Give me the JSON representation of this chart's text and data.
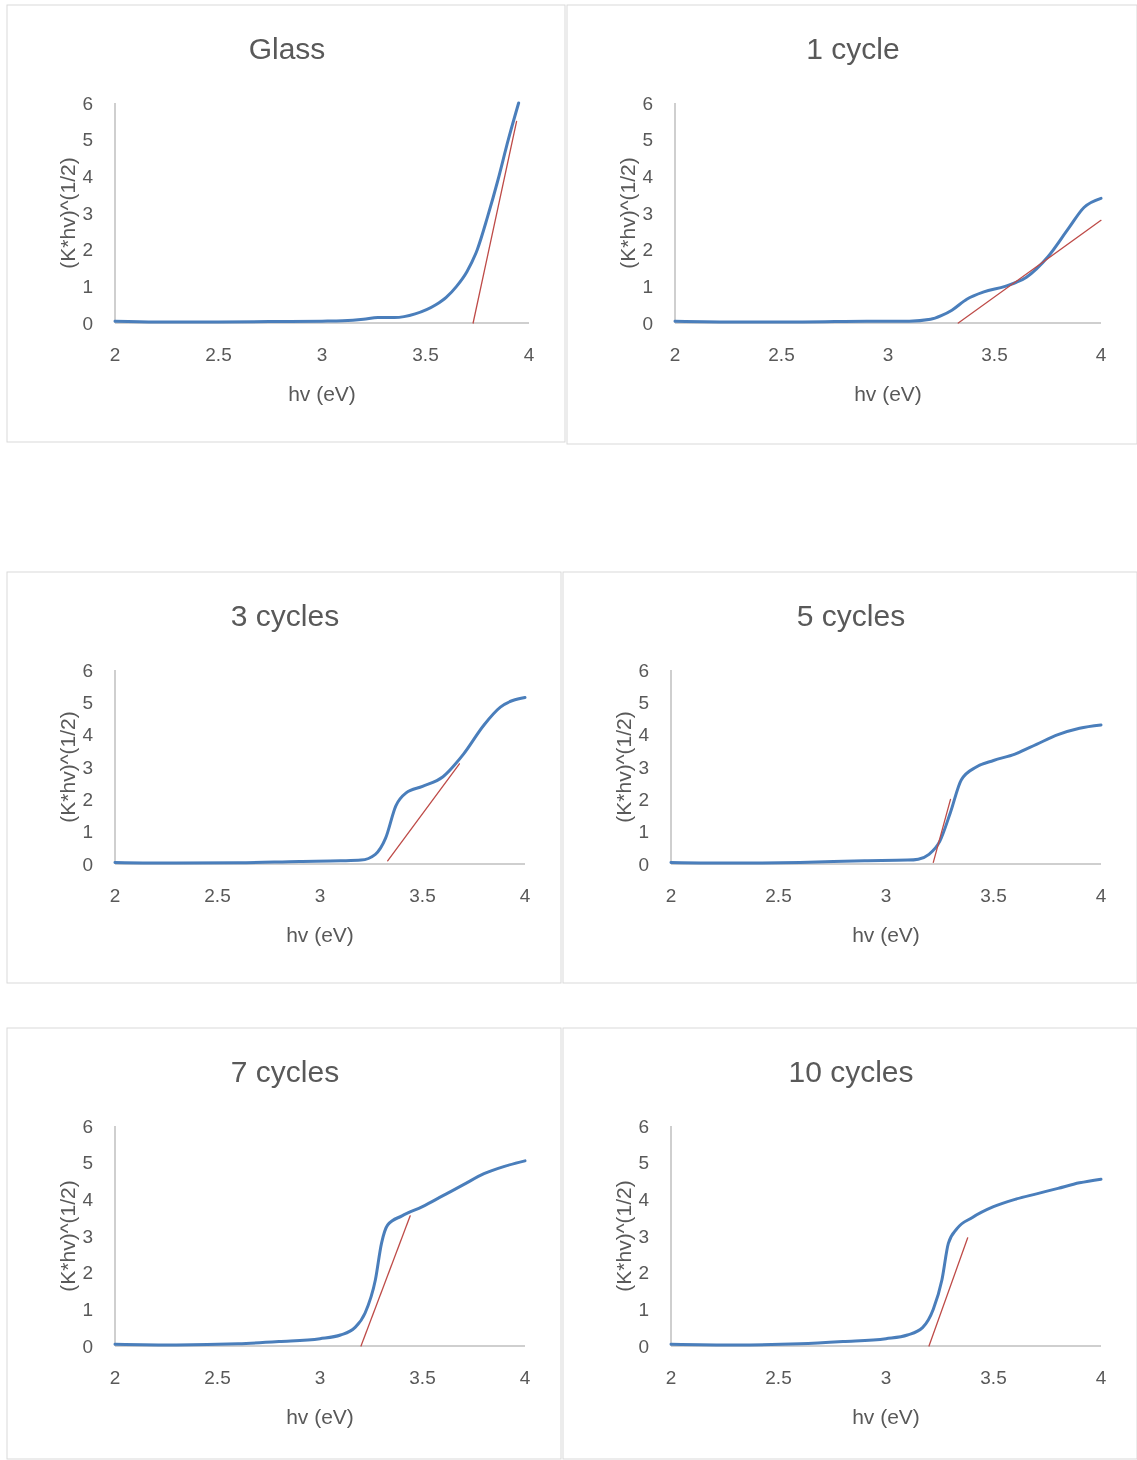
{
  "chart_data": [
    {
      "type": "line",
      "title": "Glass",
      "xlabel": "hv (eV)",
      "ylabel": "(K*hv)^(1/2)",
      "xlim": [
        2,
        4
      ],
      "xticks": [
        2,
        2.5,
        3,
        3.5,
        4
      ],
      "ylim": [
        0,
        6
      ],
      "yticks": [
        0,
        1,
        2,
        3,
        4,
        5,
        6
      ],
      "series": [
        {
          "color": "#4a7ebb",
          "x": [
            2,
            2.2,
            2.5,
            2.8,
            3,
            3.1,
            3.2,
            3.27,
            3.35,
            3.45,
            3.55,
            3.6,
            3.65,
            3.7,
            3.75,
            3.8,
            3.85,
            3.9,
            3.95
          ],
          "values": [
            0.05,
            0.03,
            0.03,
            0.04,
            0.05,
            0.06,
            0.1,
            0.15,
            0.15,
            0.25,
            0.5,
            0.7,
            1.0,
            1.4,
            2.0,
            2.9,
            3.9,
            5.0,
            6.0
          ]
        },
        {
          "color": "#be4b48",
          "x": [
            3.73,
            3.94
          ],
          "values": [
            0,
            5.5
          ]
        }
      ]
    },
    {
      "type": "line",
      "title": "1 cycle",
      "xlabel": "hv (eV)",
      "ylabel": "(K*hv)^(1/2)",
      "xlim": [
        2,
        4
      ],
      "xticks": [
        2,
        2.5,
        3,
        3.5,
        4
      ],
      "ylim": [
        0,
        6
      ],
      "yticks": [
        0,
        1,
        2,
        3,
        4,
        5,
        6
      ],
      "series": [
        {
          "color": "#4a7ebb",
          "x": [
            2,
            2.3,
            2.6,
            2.9,
            3.1,
            3.2,
            3.25,
            3.3,
            3.37,
            3.45,
            3.55,
            3.65,
            3.75,
            3.85,
            3.92,
            4.0
          ],
          "values": [
            0.05,
            0.03,
            0.03,
            0.05,
            0.05,
            0.1,
            0.2,
            0.35,
            0.65,
            0.85,
            1.0,
            1.25,
            1.8,
            2.6,
            3.15,
            3.4
          ]
        },
        {
          "color": "#be4b48",
          "x": [
            3.33,
            4.0
          ],
          "values": [
            0,
            2.8
          ]
        }
      ]
    },
    {
      "type": "line",
      "title": "3 cycles",
      "xlabel": "hv (eV)",
      "ylabel": "(K*hv)^(1/2)",
      "xlim": [
        2,
        4
      ],
      "xticks": [
        2,
        2.5,
        3,
        3.5,
        4
      ],
      "ylim": [
        0,
        6
      ],
      "yticks": [
        0,
        1,
        2,
        3,
        4,
        5,
        6
      ],
      "series": [
        {
          "color": "#4a7ebb",
          "x": [
            2,
            2.3,
            2.6,
            2.9,
            3.1,
            3.2,
            3.27,
            3.32,
            3.37,
            3.42,
            3.5,
            3.6,
            3.7,
            3.8,
            3.88,
            4.0
          ],
          "values": [
            0.05,
            0.03,
            0.04,
            0.08,
            0.1,
            0.12,
            0.3,
            0.8,
            1.8,
            2.2,
            2.4,
            2.7,
            3.4,
            4.3,
            4.85,
            5.15
          ]
        },
        {
          "color": "#be4b48",
          "x": [
            3.33,
            3.68
          ],
          "values": [
            0.1,
            3.1
          ]
        }
      ]
    },
    {
      "type": "line",
      "title": "5 cycles",
      "xlabel": "hv (eV)",
      "ylabel": "(K*hv)^(1/2)",
      "xlim": [
        2,
        4
      ],
      "xticks": [
        2,
        2.5,
        3,
        3.5,
        4
      ],
      "ylim": [
        0,
        6
      ],
      "yticks": [
        0,
        1,
        2,
        3,
        4,
        5,
        6
      ],
      "series": [
        {
          "color": "#4a7ebb",
          "x": [
            2,
            2.3,
            2.6,
            2.9,
            3.1,
            3.15,
            3.2,
            3.25,
            3.3,
            3.35,
            3.42,
            3.5,
            3.6,
            3.7,
            3.8,
            3.9,
            4.0
          ],
          "values": [
            0.05,
            0.03,
            0.05,
            0.1,
            0.12,
            0.15,
            0.3,
            0.7,
            1.6,
            2.6,
            3.0,
            3.2,
            3.4,
            3.7,
            4.0,
            4.2,
            4.3
          ]
        },
        {
          "color": "#be4b48",
          "x": [
            3.22,
            3.3
          ],
          "values": [
            0.05,
            2.0
          ]
        }
      ]
    },
    {
      "type": "line",
      "title": "7 cycles",
      "xlabel": "hv (eV)",
      "ylabel": "(K*hv)^(1/2)",
      "xlim": [
        2,
        4
      ],
      "xticks": [
        2,
        2.5,
        3,
        3.5,
        4
      ],
      "ylim": [
        0,
        6
      ],
      "yticks": [
        0,
        1,
        2,
        3,
        4,
        5,
        6
      ],
      "series": [
        {
          "color": "#4a7ebb",
          "x": [
            2,
            2.3,
            2.6,
            2.8,
            3,
            3.1,
            3.17,
            3.22,
            3.27,
            3.3,
            3.33,
            3.4,
            3.5,
            3.6,
            3.7,
            3.8,
            3.9,
            4.0
          ],
          "values": [
            0.05,
            0.03,
            0.06,
            0.12,
            0.2,
            0.3,
            0.5,
            0.9,
            1.8,
            2.8,
            3.3,
            3.55,
            3.8,
            4.1,
            4.4,
            4.7,
            4.9,
            5.05
          ]
        },
        {
          "color": "#be4b48",
          "x": [
            3.2,
            3.44
          ],
          "values": [
            0,
            3.55
          ]
        }
      ]
    },
    {
      "type": "line",
      "title": "10 cycles",
      "xlabel": "hv (eV)",
      "ylabel": "(K*hv)^(1/2)",
      "xlim": [
        2,
        4
      ],
      "xticks": [
        2,
        2.5,
        3,
        3.5,
        4
      ],
      "ylim": [
        0,
        6
      ],
      "yticks": [
        0,
        1,
        2,
        3,
        4,
        5,
        6
      ],
      "series": [
        {
          "color": "#4a7ebb",
          "x": [
            2,
            2.3,
            2.6,
            2.8,
            3,
            3.1,
            3.17,
            3.22,
            3.26,
            3.29,
            3.33,
            3.4,
            3.5,
            3.6,
            3.7,
            3.8,
            3.9,
            4.0
          ],
          "values": [
            0.05,
            0.03,
            0.06,
            0.12,
            0.2,
            0.3,
            0.5,
            1.0,
            1.8,
            2.8,
            3.2,
            3.5,
            3.8,
            4.0,
            4.15,
            4.3,
            4.45,
            4.55
          ]
        },
        {
          "color": "#be4b48",
          "x": [
            3.2,
            3.38
          ],
          "values": [
            0,
            2.95
          ]
        }
      ]
    }
  ]
}
